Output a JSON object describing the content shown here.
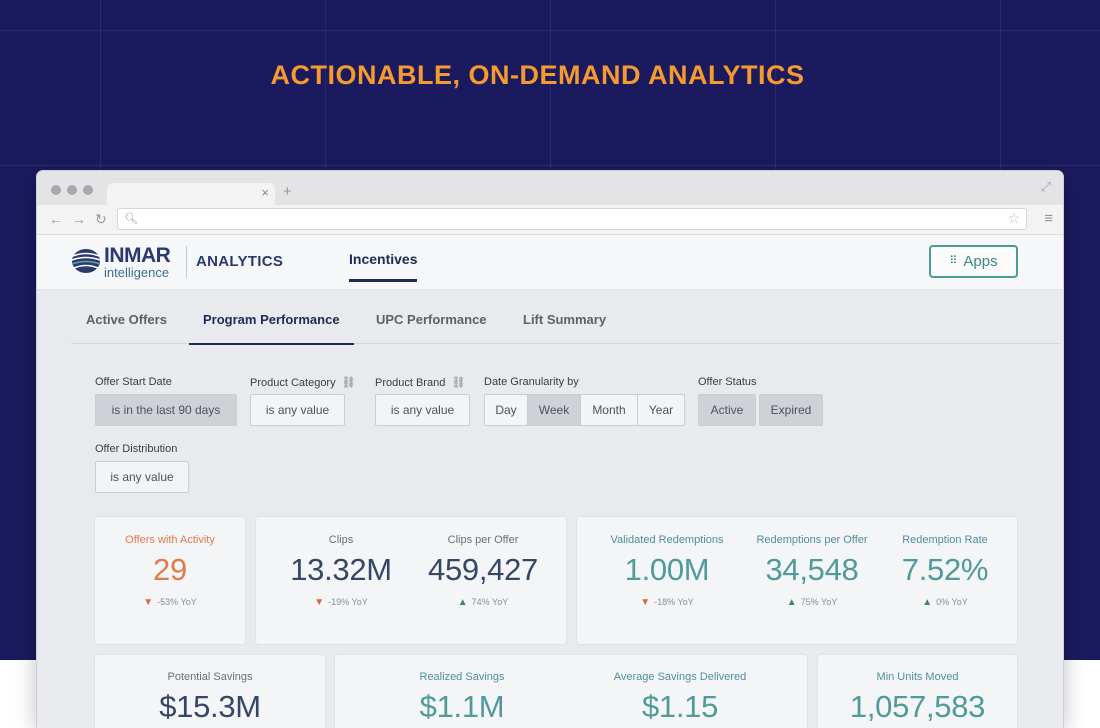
{
  "headline": "ACTIONABLE, ON-DEMAND ANALYTICS",
  "brand": {
    "name": "INMAR",
    "subname": "intelligence",
    "product": "ANALYTICS",
    "colors": {
      "navy": "#2a3a6f",
      "teal": "#4f9a9b",
      "orange": "#e27a4b",
      "hero_bg": "#1b1a5e",
      "headline": "#f59a2f"
    }
  },
  "header": {
    "nav_item": "Incentives",
    "apps_label": "Apps"
  },
  "subtabs": [
    {
      "label": "Active Offers",
      "active": false
    },
    {
      "label": "Program Performance",
      "active": true
    },
    {
      "label": "UPC Performance",
      "active": false
    },
    {
      "label": "Lift Summary",
      "active": false
    }
  ],
  "filters": {
    "offer_start_date": {
      "label": "Offer Start Date",
      "value": "is in the last 90 days"
    },
    "product_category": {
      "label": "Product Category",
      "value": "is any value"
    },
    "product_brand": {
      "label": "Product Brand",
      "value": "is any value"
    },
    "date_granularity": {
      "label": "Date Granularity by",
      "options": [
        "Day",
        "Week",
        "Month",
        "Year"
      ],
      "selected": "Week"
    },
    "offer_status": {
      "label": "Offer Status",
      "options": [
        "Active",
        "Expired"
      ],
      "selected": [
        "Active",
        "Expired"
      ]
    },
    "offer_distribution": {
      "label": "Offer Distribution",
      "value": "is any value"
    }
  },
  "metrics": {
    "offers_with_activity": {
      "label": "Offers with Activity",
      "value": "29",
      "yoy": "-53%",
      "yoy_unit": "YoY",
      "trend": "down"
    },
    "clips": {
      "label": "Clips",
      "value": "13.32M",
      "yoy": "-19%",
      "yoy_unit": "YoY",
      "trend": "down"
    },
    "clips_per_offer": {
      "label": "Clips per Offer",
      "value": "459,427",
      "yoy": "74%",
      "yoy_unit": "YoY",
      "trend": "up"
    },
    "validated_redemptions": {
      "label": "Validated Redemptions",
      "value": "1.00M",
      "yoy": "-18%",
      "yoy_unit": "YoY",
      "trend": "down"
    },
    "redemptions_per_offer": {
      "label": "Redemptions per Offer",
      "value": "34,548",
      "yoy": "75%",
      "yoy_unit": "YoY",
      "trend": "up"
    },
    "redemption_rate": {
      "label": "Redemption Rate",
      "value": "7.52%",
      "yoy": "0%",
      "yoy_unit": "YoY",
      "trend": "up"
    },
    "potential_savings": {
      "label": "Potential Savings",
      "value": "$15.3M"
    },
    "realized_savings": {
      "label": "Realized Savings",
      "value": "$1.1M"
    },
    "average_savings_delivered": {
      "label": "Average Savings Delivered",
      "value": "$1.15"
    },
    "min_units_moved": {
      "label": "Min Units Moved",
      "value": "1,057,583"
    }
  }
}
